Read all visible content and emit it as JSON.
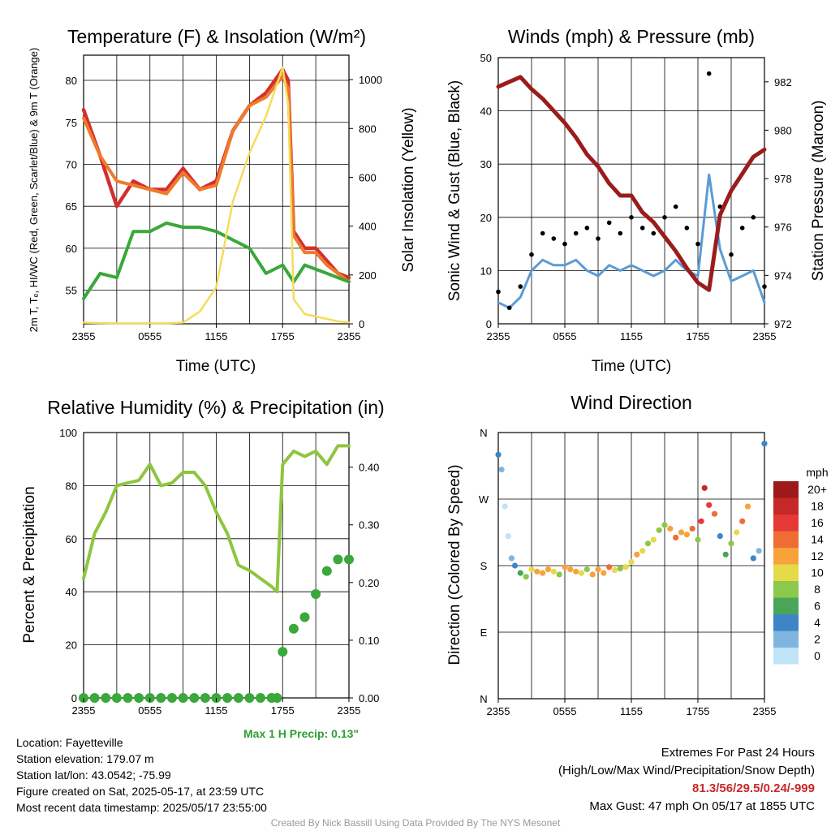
{
  "panels": {
    "temp": {
      "title": "Temperature (F) & Insolation (W/m²)",
      "ylabel_left": "2m T, Tₑ, HI/WC (Red, Green, Scarlet/Blue) & 9m T (Orange)",
      "ylabel_right": "Solar Insolation (Yellow)",
      "xlabel": "Time (UTC)"
    },
    "wind": {
      "title": "Winds (mph) & Pressure (mb)",
      "ylabel_left": "Sonic Wind & Gust (Blue, Black)",
      "ylabel_right": "Station Pressure (Maroon)",
      "xlabel": "Time (UTC)"
    },
    "rh": {
      "title": "Relative Humidity (%) & Precipitation (in)",
      "ylabel_left": "Percent & Precipitation"
    },
    "dir": {
      "title": "Wind Direction",
      "ylabel_left": "Direction (Colored By Speed)",
      "legend_title": "mph",
      "legend_labels": [
        "20+",
        "18",
        "16",
        "14",
        "12",
        "10",
        "8",
        "6",
        "4",
        "2",
        "0"
      ],
      "legend_colors": [
        "#9e1a1a",
        "#c62828",
        "#e53935",
        "#ef6c35",
        "#f7a23b",
        "#e6da4a",
        "#8cc84b",
        "#4aa55b",
        "#3d85c6",
        "#7fb6e0",
        "#bfe3f7"
      ]
    }
  },
  "footer": {
    "location": "Location: Fayetteville",
    "elevation": "Station elevation: 179.07 m",
    "latlon": "Station lat/lon: 43.0542; -75.99",
    "created": "Figure created on Sat, 2025-05-17, at 23:59 UTC",
    "recent": "Most recent data timestamp: 2025/05/17 23:55:00",
    "max_precip": "Max 1 H Precip: 0.13\"",
    "extremes_title": "Extremes For Past 24 Hours",
    "extremes_sub": "(High/Low/Max Wind/Precipitation/Snow Depth)",
    "extremes_values": "81.3/56/29.5/0.24/-999",
    "max_gust": "Max Gust: 47 mph On 05/17 at 1855 UTC",
    "credit": "Created By Nick Bassill Using Data Provided By The NYS Mesonet"
  },
  "chart_data": [
    {
      "type": "line",
      "title": "Temperature (F) & Insolation (W/m²)",
      "xlabel": "Time (UTC)",
      "x_ticks": [
        "2355",
        "0555",
        "1155",
        "1755",
        "2355"
      ],
      "x_hours": [
        0,
        1.5,
        3,
        4.5,
        6,
        7.5,
        9,
        10.5,
        12,
        13.5,
        15,
        16.5,
        18,
        18.5,
        19,
        20,
        21,
        22,
        23,
        24
      ],
      "ylim": [
        51,
        83
      ],
      "yticks": [
        55,
        60,
        65,
        70,
        75,
        80
      ],
      "y2lim": [
        0,
        1100
      ],
      "y2ticks": [
        0,
        200,
        400,
        600,
        800,
        1000
      ],
      "series": [
        {
          "name": "2m T",
          "color": "#d32f2f",
          "axis": "left",
          "values": [
            76.5,
            71,
            65,
            68,
            67,
            67,
            69.5,
            67,
            68,
            74,
            77,
            78.5,
            81.3,
            80,
            62,
            60,
            60,
            58.5,
            57,
            56.5
          ]
        },
        {
          "name": "9m T",
          "color": "#ef7b2a",
          "axis": "left",
          "values": [
            75.5,
            71,
            68,
            67.5,
            67,
            66.5,
            69,
            67,
            67.5,
            74,
            77,
            78,
            80.5,
            79,
            61.5,
            59.5,
            59.5,
            58,
            57,
            56
          ]
        },
        {
          "name": "Td",
          "color": "#3aa83a",
          "axis": "left",
          "values": [
            54,
            57,
            56.5,
            62,
            62,
            63,
            62.5,
            62.5,
            62,
            61,
            60,
            57,
            58,
            57,
            56,
            58,
            57.5,
            57,
            56.5,
            56
          ]
        },
        {
          "name": "Solar",
          "color": "#f4dc5c",
          "axis": "right",
          "values": [
            5,
            3,
            2,
            2,
            2,
            2,
            5,
            50,
            150,
            500,
            700,
            850,
            1050,
            900,
            100,
            40,
            30,
            20,
            10,
            5
          ]
        }
      ]
    },
    {
      "type": "line",
      "title": "Winds (mph) & Pressure (mb)",
      "xlabel": "Time (UTC)",
      "x_ticks": [
        "2355",
        "0555",
        "1155",
        "1755",
        "2355"
      ],
      "x_hours": [
        0,
        1,
        2,
        3,
        4,
        5,
        6,
        7,
        8,
        9,
        10,
        11,
        12,
        13,
        14,
        15,
        16,
        17,
        18,
        19,
        20,
        21,
        22,
        23,
        24
      ],
      "ylim": [
        0,
        50
      ],
      "yticks": [
        0,
        10,
        20,
        30,
        40,
        50
      ],
      "y2lim": [
        972,
        983
      ],
      "y2ticks": [
        972,
        974,
        976,
        978,
        980,
        982
      ],
      "series": [
        {
          "name": "Wind",
          "color": "#5a9bd5",
          "axis": "left",
          "values": [
            4,
            3,
            5,
            10,
            12,
            11,
            11,
            12,
            10,
            9,
            11,
            10,
            11,
            10,
            9,
            10,
            12,
            10,
            9,
            28,
            14,
            8,
            9,
            10,
            4
          ]
        },
        {
          "name": "Gust",
          "color": "#000000",
          "axis": "left",
          "values": [
            6,
            3,
            7,
            13,
            17,
            16,
            15,
            17,
            18,
            16,
            19,
            17,
            20,
            18,
            17,
            20,
            22,
            18,
            15,
            47,
            22,
            13,
            18,
            20,
            7
          ]
        },
        {
          "name": "Pressure",
          "color": "#9b1c1c",
          "axis": "right",
          "values": [
            981.8,
            982.0,
            982.2,
            981.7,
            981.3,
            980.8,
            980.3,
            979.7,
            979.0,
            978.5,
            977.8,
            977.3,
            977.3,
            976.6,
            976.2,
            975.6,
            975.0,
            974.3,
            973.7,
            973.4,
            976.5,
            977.5,
            978.2,
            978.9,
            979.2
          ]
        }
      ]
    },
    {
      "type": "line",
      "title": "Relative Humidity (%) & Precipitation (in)",
      "x_ticks": [
        "2355",
        "0555",
        "1155",
        "1755",
        "2355"
      ],
      "x_hours": [
        0,
        1,
        2,
        3,
        4,
        5,
        6,
        7,
        8,
        9,
        10,
        11,
        12,
        13,
        14,
        15,
        16,
        17,
        17.5,
        18,
        19,
        20,
        21,
        22,
        23,
        24
      ],
      "ylim": [
        0,
        100
      ],
      "yticks": [
        0,
        20,
        40,
        60,
        80,
        100
      ],
      "y2lim": [
        0,
        0.46
      ],
      "y2ticks": [
        0.0,
        0.1,
        0.2,
        0.3,
        0.4
      ],
      "series": [
        {
          "name": "RH",
          "color": "#8dc63f",
          "axis": "left",
          "values": [
            45,
            62,
            70,
            80,
            81,
            82,
            88,
            80,
            81,
            85,
            85,
            80,
            70,
            62,
            50,
            48,
            45,
            42,
            40,
            88,
            93,
            91,
            93,
            88,
            95,
            95
          ]
        },
        {
          "name": "Precip",
          "color": "#3aa83a",
          "axis": "right",
          "values": [
            0,
            0,
            0,
            0,
            0,
            0,
            0,
            0,
            0,
            0,
            0,
            0,
            0,
            0,
            0,
            0,
            0,
            0,
            0,
            0.08,
            0.12,
            0.14,
            0.18,
            0.22,
            0.24,
            0.24
          ]
        }
      ]
    },
    {
      "type": "scatter",
      "title": "Wind Direction",
      "x_ticks": [
        "2355",
        "0555",
        "1155",
        "1755",
        "2355"
      ],
      "y_ticks": [
        "N",
        "E",
        "S",
        "W",
        "N"
      ],
      "ylim": [
        0,
        360
      ],
      "x": [
        0,
        0.3,
        0.6,
        0.9,
        1.2,
        1.5,
        2,
        2.5,
        3,
        3.5,
        4,
        4.5,
        5,
        5.5,
        6,
        6.5,
        7,
        7.5,
        8,
        8.5,
        9,
        9.5,
        10,
        10.5,
        11,
        11.5,
        12,
        12.5,
        13,
        13.5,
        14,
        14.5,
        15,
        15.5,
        16,
        16.5,
        17,
        17.5,
        18,
        18.3,
        18.6,
        19,
        19.5,
        20,
        20.5,
        21,
        21.5,
        22,
        22.5,
        23,
        23.5,
        24
      ],
      "y": [
        330,
        310,
        260,
        220,
        190,
        180,
        170,
        165,
        175,
        172,
        170,
        175,
        172,
        168,
        178,
        175,
        172,
        170,
        175,
        168,
        175,
        170,
        178,
        174,
        176,
        178,
        185,
        195,
        200,
        210,
        215,
        228,
        235,
        230,
        218,
        225,
        222,
        230,
        215,
        240,
        285,
        262,
        250,
        220,
        195,
        210,
        225,
        240,
        260,
        190,
        200,
        345
      ],
      "speed": [
        4,
        2,
        0,
        0,
        2,
        4,
        6,
        8,
        10,
        12,
        12,
        12,
        10,
        8,
        12,
        12,
        12,
        10,
        8,
        12,
        12,
        12,
        14,
        10,
        8,
        10,
        10,
        12,
        10,
        8,
        10,
        8,
        8,
        12,
        14,
        12,
        12,
        14,
        8,
        16,
        18,
        16,
        14,
        4,
        6,
        8,
        10,
        14,
        12,
        4,
        2,
        4
      ]
    }
  ]
}
